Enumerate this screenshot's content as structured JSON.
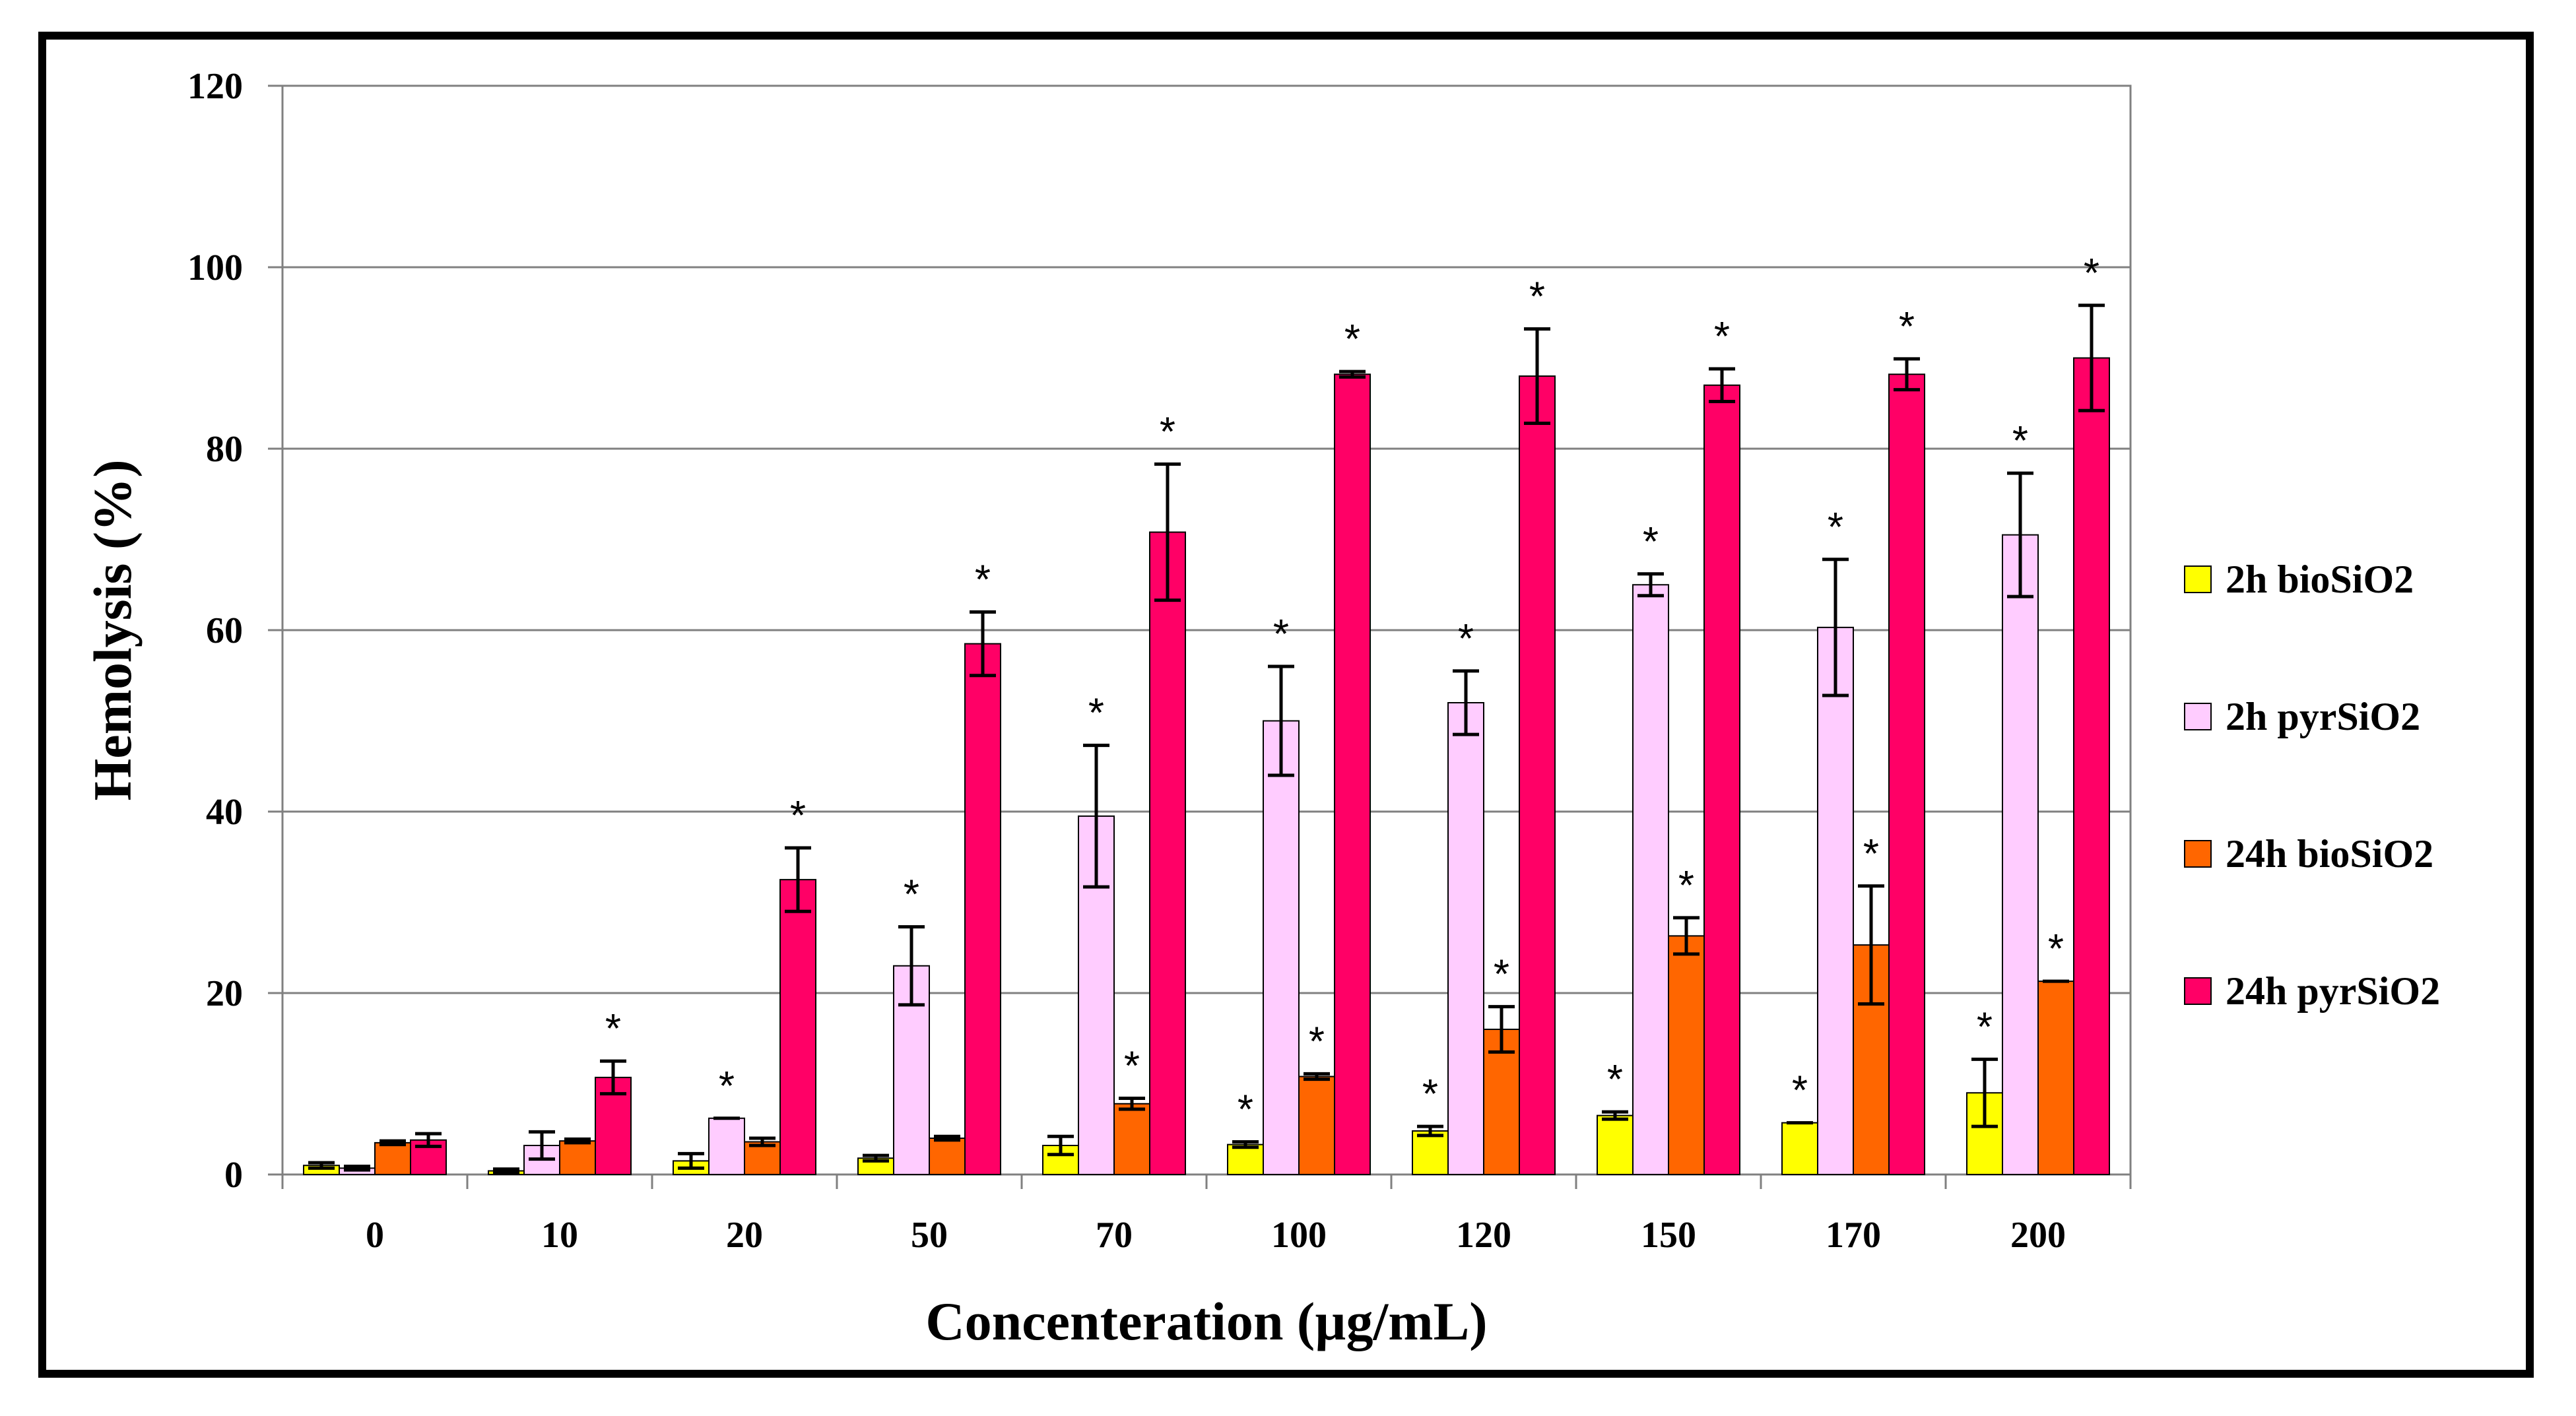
{
  "chart_data": {
    "type": "bar",
    "title": "",
    "xlabel": "Concenteration (µg/mL)",
    "ylabel": "Hemolysis (%)",
    "ylim": [
      0,
      120
    ],
    "yticks": [
      "0",
      "20",
      "40",
      "60",
      "80",
      "100",
      "120"
    ],
    "grid": true,
    "legend_position": "right",
    "categories": [
      "0",
      "10",
      "20",
      "50",
      "70",
      "100",
      "120",
      "150",
      "170",
      "200"
    ],
    "significance_marker": "*",
    "series": [
      {
        "name": "2h bioSiO2",
        "color": "#FFFF00",
        "values": [
          1.0,
          0.4,
          1.5,
          1.8,
          3.2,
          3.3,
          4.8,
          6.5,
          5.7,
          9.0
        ],
        "errors": [
          0.3,
          0.2,
          0.8,
          0.3,
          1.0,
          0.3,
          0.5,
          0.4,
          0.0,
          3.7
        ],
        "significant": [
          false,
          false,
          false,
          false,
          false,
          true,
          true,
          true,
          true,
          true
        ]
      },
      {
        "name": "2h pyrSiO2",
        "color": "#FFCCFF",
        "values": [
          0.7,
          3.2,
          6.2,
          23.0,
          39.5,
          50.0,
          52.0,
          65.0,
          60.3,
          70.5
        ],
        "errors": [
          0.2,
          1.5,
          0.0,
          4.3,
          7.8,
          6.0,
          3.5,
          1.2,
          7.5,
          6.8
        ],
        "significant": [
          false,
          false,
          true,
          true,
          true,
          true,
          true,
          true,
          true,
          true
        ]
      },
      {
        "name": "24h bioSiO2",
        "color": "#FF6600",
        "values": [
          3.5,
          3.7,
          3.6,
          4.0,
          7.8,
          10.8,
          16.0,
          26.3,
          25.3,
          21.3
        ],
        "errors": [
          0.2,
          0.2,
          0.4,
          0.2,
          0.6,
          0.3,
          2.5,
          2.0,
          6.5,
          0.0
        ],
        "significant": [
          false,
          false,
          false,
          false,
          true,
          true,
          true,
          true,
          true,
          true
        ]
      },
      {
        "name": "24h pyrSiO2",
        "color": "#FF0066",
        "values": [
          3.8,
          10.7,
          32.5,
          58.5,
          70.8,
          88.2,
          88.0,
          87.0,
          88.2,
          90.0
        ],
        "errors": [
          0.7,
          1.8,
          3.5,
          3.5,
          7.5,
          0.3,
          5.2,
          1.8,
          1.7,
          5.8
        ],
        "significant": [
          false,
          true,
          true,
          true,
          true,
          true,
          true,
          true,
          true,
          true
        ]
      }
    ]
  }
}
